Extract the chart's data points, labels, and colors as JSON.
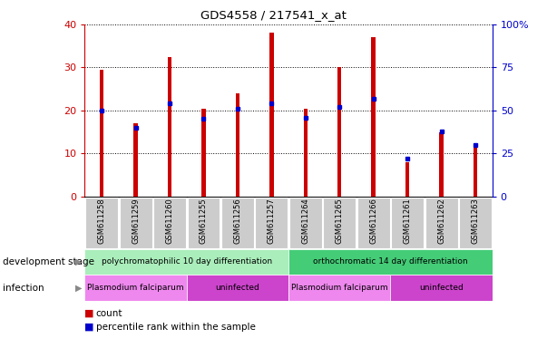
{
  "title": "GDS4558 / 217541_x_at",
  "categories": [
    "GSM611258",
    "GSM611259",
    "GSM611260",
    "GSM611255",
    "GSM611256",
    "GSM611257",
    "GSM611264",
    "GSM611265",
    "GSM611266",
    "GSM611261",
    "GSM611262",
    "GSM611263"
  ],
  "count_values": [
    29.5,
    17.0,
    32.5,
    20.5,
    24.0,
    38.0,
    20.5,
    30.0,
    37.0,
    8.0,
    15.0,
    12.0
  ],
  "percentile_values": [
    50,
    40,
    54,
    45,
    51,
    54,
    46,
    52,
    57,
    22,
    38,
    30
  ],
  "bar_color": "#cc0000",
  "blue_color": "#0000cc",
  "left_axis_color": "#cc0000",
  "right_axis_color": "#0000cc",
  "ylim_left": [
    0,
    40
  ],
  "ylim_right": [
    0,
    100
  ],
  "yticks_left": [
    0,
    10,
    20,
    30,
    40
  ],
  "yticks_right": [
    0,
    25,
    50,
    75,
    100
  ],
  "ytick_labels_right": [
    "0",
    "25",
    "50",
    "75",
    "100%"
  ],
  "background_color": "#ffffff",
  "dev_stage_groups": [
    {
      "text": "polychromatophilic 10 day differentiation",
      "start": 0,
      "end": 6,
      "color": "#aaeebb"
    },
    {
      "text": "orthochromatic 14 day differentiation",
      "start": 6,
      "end": 12,
      "color": "#44cc77"
    }
  ],
  "infection_groups": [
    {
      "text": "Plasmodium falciparum",
      "start": 0,
      "end": 3,
      "color": "#ee88ee"
    },
    {
      "text": "uninfected",
      "start": 3,
      "end": 6,
      "color": "#cc44cc"
    },
    {
      "text": "Plasmodium falciparum",
      "start": 6,
      "end": 9,
      "color": "#ee88ee"
    },
    {
      "text": "uninfected",
      "start": 9,
      "end": 12,
      "color": "#cc44cc"
    }
  ]
}
